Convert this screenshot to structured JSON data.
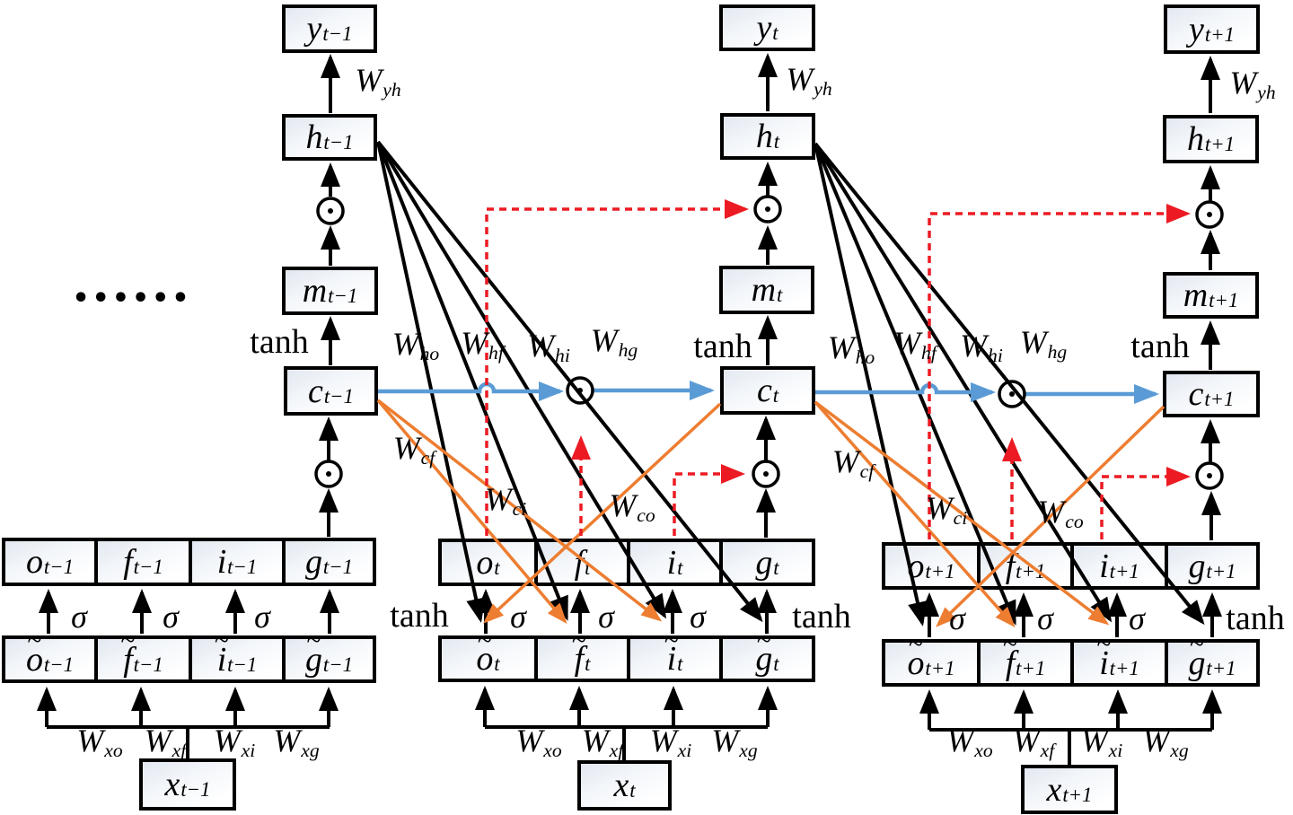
{
  "ellipsis": "••••••",
  "colors": {
    "line_black": "#000000",
    "cell_state_blue": "#5B9BD5",
    "peephole_orange": "#ED7D31",
    "gate_signal_red": "#EC1B23",
    "box_fill_top": "#E3E8F0",
    "box_fill_bottom": "#FFFFFF"
  },
  "columns": [
    {
      "time_suffix": "t−1",
      "output_box": {
        "base": "y",
        "sub": "t−1"
      },
      "output_weight": {
        "base": "W",
        "sub": "yh"
      },
      "hidden_box": {
        "base": "h",
        "sub": "t−1"
      },
      "memory_box": {
        "base": "m",
        "sub": "t−1"
      },
      "cell_tanh_label": "tanh",
      "cell_box": {
        "base": "c",
        "sub": "t−1"
      },
      "gate_boxes": [
        {
          "base": "o",
          "sub": "t−1"
        },
        {
          "base": "f",
          "sub": "t−1"
        },
        {
          "base": "i",
          "sub": "t−1"
        },
        {
          "base": "g",
          "sub": "t−1"
        }
      ],
      "gate_activation_labels": [
        "σ",
        "σ",
        "σ",
        "tanh"
      ],
      "pre_gate_boxes": [
        {
          "base": "o",
          "sub": "t−1",
          "tilde": true
        },
        {
          "base": "f",
          "sub": "t−1",
          "tilde": true
        },
        {
          "base": "i",
          "sub": "t−1",
          "tilde": true
        },
        {
          "base": "g",
          "sub": "t−1",
          "tilde": true
        }
      ],
      "input_weights": [
        {
          "base": "W",
          "sub": "xo"
        },
        {
          "base": "W",
          "sub": "xf"
        },
        {
          "base": "W",
          "sub": "xi"
        },
        {
          "base": "W",
          "sub": "xg"
        }
      ],
      "input_box": {
        "base": "x",
        "sub": "t−1"
      }
    },
    {
      "time_suffix": "t",
      "output_box": {
        "base": "y",
        "sub": "t"
      },
      "output_weight": {
        "base": "W",
        "sub": "yh"
      },
      "hidden_box": {
        "base": "h",
        "sub": "t"
      },
      "memory_box": {
        "base": "m",
        "sub": "t"
      },
      "cell_tanh_label": "tanh",
      "cell_box": {
        "base": "c",
        "sub": "t"
      },
      "gate_boxes": [
        {
          "base": "o",
          "sub": "t"
        },
        {
          "base": "f",
          "sub": "t"
        },
        {
          "base": "i",
          "sub": "t"
        },
        {
          "base": "g",
          "sub": "t"
        }
      ],
      "gate_activation_labels": [
        "σ",
        "σ",
        "σ",
        "tanh"
      ],
      "pre_gate_boxes": [
        {
          "base": "o",
          "sub": "t",
          "tilde": true
        },
        {
          "base": "f",
          "sub": "t",
          "tilde": true
        },
        {
          "base": "i",
          "sub": "t",
          "tilde": true
        },
        {
          "base": "g",
          "sub": "t",
          "tilde": true
        }
      ],
      "input_weights": [
        {
          "base": "W",
          "sub": "xo"
        },
        {
          "base": "W",
          "sub": "xf"
        },
        {
          "base": "W",
          "sub": "xi"
        },
        {
          "base": "W",
          "sub": "xg"
        }
      ],
      "input_box": {
        "base": "x",
        "sub": "t"
      }
    },
    {
      "time_suffix": "t+1",
      "output_box": {
        "base": "y",
        "sub": "t+1"
      },
      "output_weight": {
        "base": "W",
        "sub": "yh"
      },
      "hidden_box": {
        "base": "h",
        "sub": "t+1"
      },
      "memory_box": {
        "base": "m",
        "sub": "t+1"
      },
      "cell_tanh_label": "tanh",
      "cell_box": {
        "base": "c",
        "sub": "t+1"
      },
      "gate_boxes": [
        {
          "base": "o",
          "sub": "t+1"
        },
        {
          "base": "f",
          "sub": "t+1"
        },
        {
          "base": "i",
          "sub": "t+1"
        },
        {
          "base": "g",
          "sub": "t+1"
        }
      ],
      "gate_activation_labels": [
        "σ",
        "σ",
        "σ",
        "tanh"
      ],
      "pre_gate_boxes": [
        {
          "base": "o",
          "sub": "t+1",
          "tilde": true
        },
        {
          "base": "f",
          "sub": "t+1",
          "tilde": true
        },
        {
          "base": "i",
          "sub": "t+1",
          "tilde": true
        },
        {
          "base": "g",
          "sub": "t+1",
          "tilde": true
        }
      ],
      "input_weights": [
        {
          "base": "W",
          "sub": "xo"
        },
        {
          "base": "W",
          "sub": "xf"
        },
        {
          "base": "W",
          "sub": "xi"
        },
        {
          "base": "W",
          "sub": "xg"
        }
      ],
      "input_box": {
        "base": "x",
        "sub": "t+1"
      }
    }
  ],
  "hidden_weight_groups": [
    {
      "labels": [
        {
          "base": "W",
          "sub": "ho"
        },
        {
          "base": "W",
          "sub": "hf"
        },
        {
          "base": "W",
          "sub": "hi"
        },
        {
          "base": "W",
          "sub": "hg"
        }
      ]
    },
    {
      "labels": [
        {
          "base": "W",
          "sub": "ho"
        },
        {
          "base": "W",
          "sub": "hf"
        },
        {
          "base": "W",
          "sub": "hi"
        },
        {
          "base": "W",
          "sub": "hg"
        }
      ]
    }
  ],
  "cell_weight_groups": [
    {
      "labels": [
        {
          "base": "W",
          "sub": "cf"
        },
        {
          "base": "W",
          "sub": "ci"
        },
        {
          "base": "W",
          "sub": "co"
        }
      ]
    },
    {
      "labels": [
        {
          "base": "W",
          "sub": "cf"
        },
        {
          "base": "W",
          "sub": "ci"
        },
        {
          "base": "W",
          "sub": "co"
        }
      ]
    }
  ]
}
